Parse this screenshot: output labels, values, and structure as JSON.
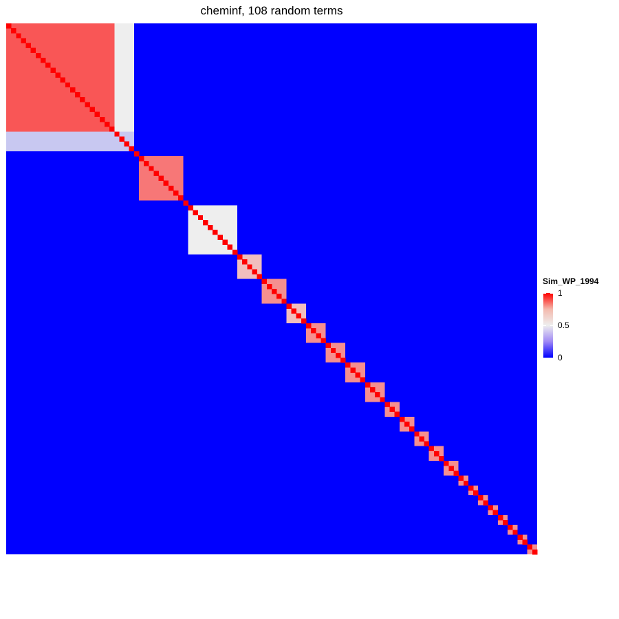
{
  "title": "cheminf, 108 random terms",
  "chart_data": {
    "type": "heatmap",
    "n_terms": 108,
    "title": "cheminf, 108 random terms",
    "value_range": [
      0,
      1
    ],
    "background_value": 0,
    "diagonal_value": 1,
    "blocks": [
      {
        "start": 0,
        "size": 22,
        "value": 0.82
      },
      {
        "start": 22,
        "size": 4,
        "value": 0.42
      },
      {
        "start": 26,
        "size": 1,
        "value": 1.0
      },
      {
        "start": 27,
        "size": 9,
        "value": 0.75
      },
      {
        "start": 36,
        "size": 1,
        "value": 1.0
      },
      {
        "start": 37,
        "size": 10,
        "value": 0.5
      },
      {
        "start": 47,
        "size": 5,
        "value": 0.6
      },
      {
        "start": 52,
        "size": 5,
        "value": 0.7
      },
      {
        "start": 57,
        "size": 4,
        "value": 0.6
      },
      {
        "start": 61,
        "size": 4,
        "value": 0.7
      },
      {
        "start": 65,
        "size": 4,
        "value": 0.7
      },
      {
        "start": 69,
        "size": 4,
        "value": 0.7
      },
      {
        "start": 73,
        "size": 4,
        "value": 0.7
      },
      {
        "start": 77,
        "size": 3,
        "value": 0.7
      },
      {
        "start": 80,
        "size": 3,
        "value": 0.7
      },
      {
        "start": 83,
        "size": 3,
        "value": 0.7
      },
      {
        "start": 86,
        "size": 3,
        "value": 0.7
      },
      {
        "start": 89,
        "size": 3,
        "value": 0.7
      },
      {
        "start": 92,
        "size": 2,
        "value": 0.7
      },
      {
        "start": 94,
        "size": 2,
        "value": 0.7
      },
      {
        "start": 96,
        "size": 2,
        "value": 0.7
      },
      {
        "start": 98,
        "size": 2,
        "value": 0.7
      },
      {
        "start": 100,
        "size": 2,
        "value": 0.7
      },
      {
        "start": 102,
        "size": 2,
        "value": 0.7
      },
      {
        "start": 104,
        "size": 2,
        "value": 0.7
      },
      {
        "start": 106,
        "size": 2,
        "value": 0.7
      }
    ],
    "legend": {
      "title": "Sim_WP_1994",
      "ticks": [
        {
          "value": 1,
          "label": "1"
        },
        {
          "value": 0.5,
          "label": "0.5"
        },
        {
          "value": 0,
          "label": "0"
        }
      ],
      "colors": [
        "#0000ff",
        "#eeeeee",
        "#ff0000"
      ]
    }
  }
}
